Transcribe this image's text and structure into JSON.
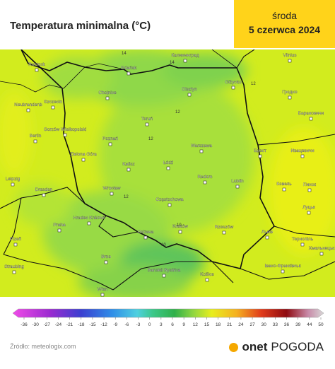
{
  "header": {
    "title": "Temperatura minimalna (°C)",
    "day": "środa",
    "date": "5 czerwca 2024"
  },
  "map": {
    "cities": [
      "Калининград",
      "Vilnius",
      "Rostock",
      "Gdańsk",
      "Olsztyn",
      "Giżycko",
      "Chojnice",
      "Szczecin",
      "Neubrandenb",
      "Гродно",
      "Toruń",
      "Gorzów Wielkopolski",
      "Berlin",
      "Барановичи",
      "Poznań",
      "Warszawa",
      "Брест",
      "Ивацевичи",
      "Zielona Góra",
      "Kalisz",
      "Łódź",
      "Radom",
      "Leipzig",
      "Lublin",
      "Пинск",
      "Dresden",
      "Wrocław",
      "Częstochowa",
      "Ковель",
      "Praha",
      "Hradec Králové",
      "Kraków",
      "Rzeszów",
      "Луцьк",
      "Ostrava",
      "Львів",
      "Plzeň",
      "Brno",
      "Тернопіль",
      "Хмельницьк",
      "Banská Bystrica",
      "Košice",
      "Івано-Франківськ",
      "Straubing",
      "Wien"
    ],
    "contours": [
      "14",
      "14",
      "12",
      "12",
      "12",
      "10",
      "12",
      "10"
    ]
  },
  "legend": {
    "ticks": [
      -36,
      -30,
      -27,
      -24,
      -21,
      -18,
      -15,
      -12,
      -9,
      -6,
      -3,
      0,
      3,
      6,
      9,
      12,
      15,
      18,
      21,
      24,
      27,
      30,
      33,
      36,
      39,
      44,
      50
    ]
  },
  "footer": {
    "source": "Źródło: meteologix.com",
    "brand": "onet",
    "product": "POGODA"
  }
}
